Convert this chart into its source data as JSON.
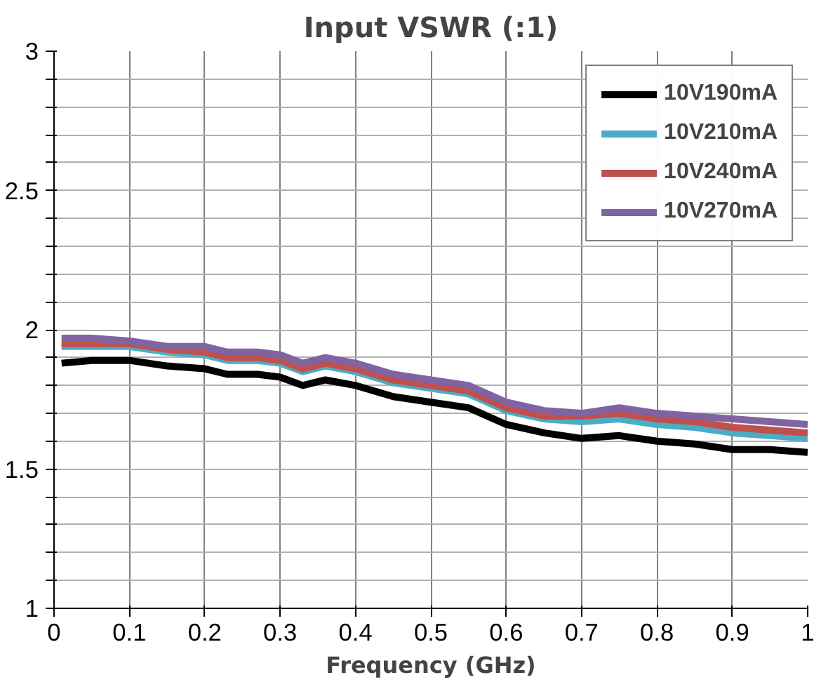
{
  "chart_data": {
    "type": "line",
    "title": "Input VSWR (:1)",
    "xlabel": "Frequency (GHz)",
    "x": [
      0.01,
      0.05,
      0.1,
      0.15,
      0.2,
      0.23,
      0.27,
      0.3,
      0.33,
      0.36,
      0.4,
      0.45,
      0.5,
      0.55,
      0.6,
      0.65,
      0.7,
      0.75,
      0.8,
      0.85,
      0.9,
      0.95,
      1.0
    ],
    "series": [
      {
        "name": "10V190mA",
        "color": "#000000",
        "values": [
          1.88,
          1.89,
          1.89,
          1.87,
          1.86,
          1.84,
          1.84,
          1.83,
          1.8,
          1.82,
          1.8,
          1.76,
          1.74,
          1.72,
          1.66,
          1.63,
          1.61,
          1.62,
          1.6,
          1.59,
          1.57,
          1.57,
          1.56
        ]
      },
      {
        "name": "10V210mA",
        "color": "#4bacc6",
        "values": [
          1.94,
          1.94,
          1.94,
          1.92,
          1.91,
          1.89,
          1.89,
          1.88,
          1.85,
          1.87,
          1.85,
          1.81,
          1.79,
          1.77,
          1.71,
          1.68,
          1.67,
          1.68,
          1.66,
          1.65,
          1.63,
          1.62,
          1.61
        ]
      },
      {
        "name": "10V240mA",
        "color": "#c0504d",
        "values": [
          1.95,
          1.95,
          1.95,
          1.93,
          1.92,
          1.9,
          1.9,
          1.89,
          1.86,
          1.88,
          1.86,
          1.82,
          1.8,
          1.78,
          1.72,
          1.69,
          1.69,
          1.7,
          1.68,
          1.67,
          1.65,
          1.64,
          1.63
        ]
      },
      {
        "name": "10V270mA",
        "color": "#8064a2",
        "values": [
          1.97,
          1.97,
          1.96,
          1.94,
          1.94,
          1.92,
          1.92,
          1.91,
          1.88,
          1.9,
          1.88,
          1.84,
          1.82,
          1.8,
          1.74,
          1.71,
          1.7,
          1.72,
          1.7,
          1.69,
          1.68,
          1.67,
          1.66
        ]
      }
    ],
    "xlim": [
      0,
      1
    ],
    "xticks": [
      0,
      0.1,
      0.2,
      0.3,
      0.4,
      0.5,
      0.6,
      0.7,
      0.8,
      0.9,
      1
    ],
    "ylim": [
      1,
      3
    ],
    "yticks": [
      1,
      {
        "value": 1.1,
        "label": null
      },
      {
        "value": 1.2,
        "label": null
      },
      {
        "value": 1.3,
        "label": null
      },
      {
        "value": 1.4,
        "label": null
      },
      1.5,
      {
        "value": 1.6,
        "label": null
      },
      {
        "value": 1.7,
        "label": null
      },
      {
        "value": 1.8,
        "label": null
      },
      {
        "value": 1.9,
        "label": null
      },
      2,
      {
        "value": 2.1,
        "label": null
      },
      {
        "value": 2.2,
        "label": null
      },
      {
        "value": 2.3,
        "label": null
      },
      {
        "value": 2.4,
        "label": null
      },
      2.5,
      {
        "value": 2.6,
        "label": null
      },
      {
        "value": 2.7,
        "label": null
      },
      {
        "value": 2.8,
        "label": null
      },
      {
        "value": 2.9,
        "label": null
      },
      3
    ],
    "grid": true,
    "legend": "top right",
    "marker": "none",
    "line_style": "solid"
  }
}
